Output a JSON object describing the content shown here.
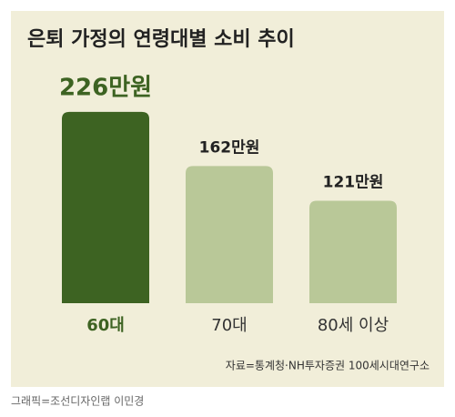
{
  "chart_data": {
    "type": "bar",
    "title": "은퇴 가정의 연령대별 소비 추이",
    "categories": [
      "60대",
      "70대",
      "80세 이상"
    ],
    "values": [
      226,
      162,
      121
    ],
    "value_labels": [
      "226만원",
      "162만원",
      "121만원"
    ],
    "colors": [
      "#3d6322",
      "#b9c898",
      "#b9c898"
    ],
    "source": "자료=통계청·NH투자증권 100세시대연구소"
  },
  "credit": "그래픽=조선디자인랩 이민경"
}
